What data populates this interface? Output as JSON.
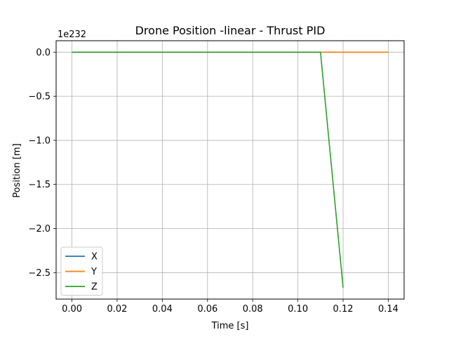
{
  "chart_data": {
    "type": "line",
    "title": "Drone Position -linear - Thrust PID",
    "xlabel": "Time [s]",
    "ylabel": "Position [m]",
    "y_offset_text": "1e232",
    "xlim": [
      -0.007,
      0.147
    ],
    "ylim": [
      -2.8,
      0.13
    ],
    "x_ticks": [
      0.0,
      0.02,
      0.04,
      0.06,
      0.08,
      0.1,
      0.12,
      0.14
    ],
    "x_tick_labels": [
      "0.00",
      "0.02",
      "0.04",
      "0.06",
      "0.08",
      "0.10",
      "0.12",
      "0.14"
    ],
    "y_ticks": [
      0.0,
      -0.5,
      -1.0,
      -1.5,
      -2.0,
      -2.5
    ],
    "y_tick_labels": [
      "0.0",
      "−0.5",
      "−1.0",
      "−1.5",
      "−2.0",
      "−2.5"
    ],
    "grid": true,
    "legend_position": "lower-left",
    "series": [
      {
        "name": "X",
        "color": "#1f77b4",
        "x": [
          0.0,
          0.11,
          0.14
        ],
        "y": [
          0.0,
          0.0,
          0.0
        ]
      },
      {
        "name": "Y",
        "color": "#ff7f0e",
        "x": [
          0.0,
          0.11,
          0.14
        ],
        "y": [
          0.0,
          0.0,
          0.0
        ]
      },
      {
        "name": "Z",
        "color": "#2ca02c",
        "x": [
          0.0,
          0.11,
          0.12
        ],
        "y": [
          0.0,
          0.0,
          -2.67
        ]
      }
    ]
  }
}
